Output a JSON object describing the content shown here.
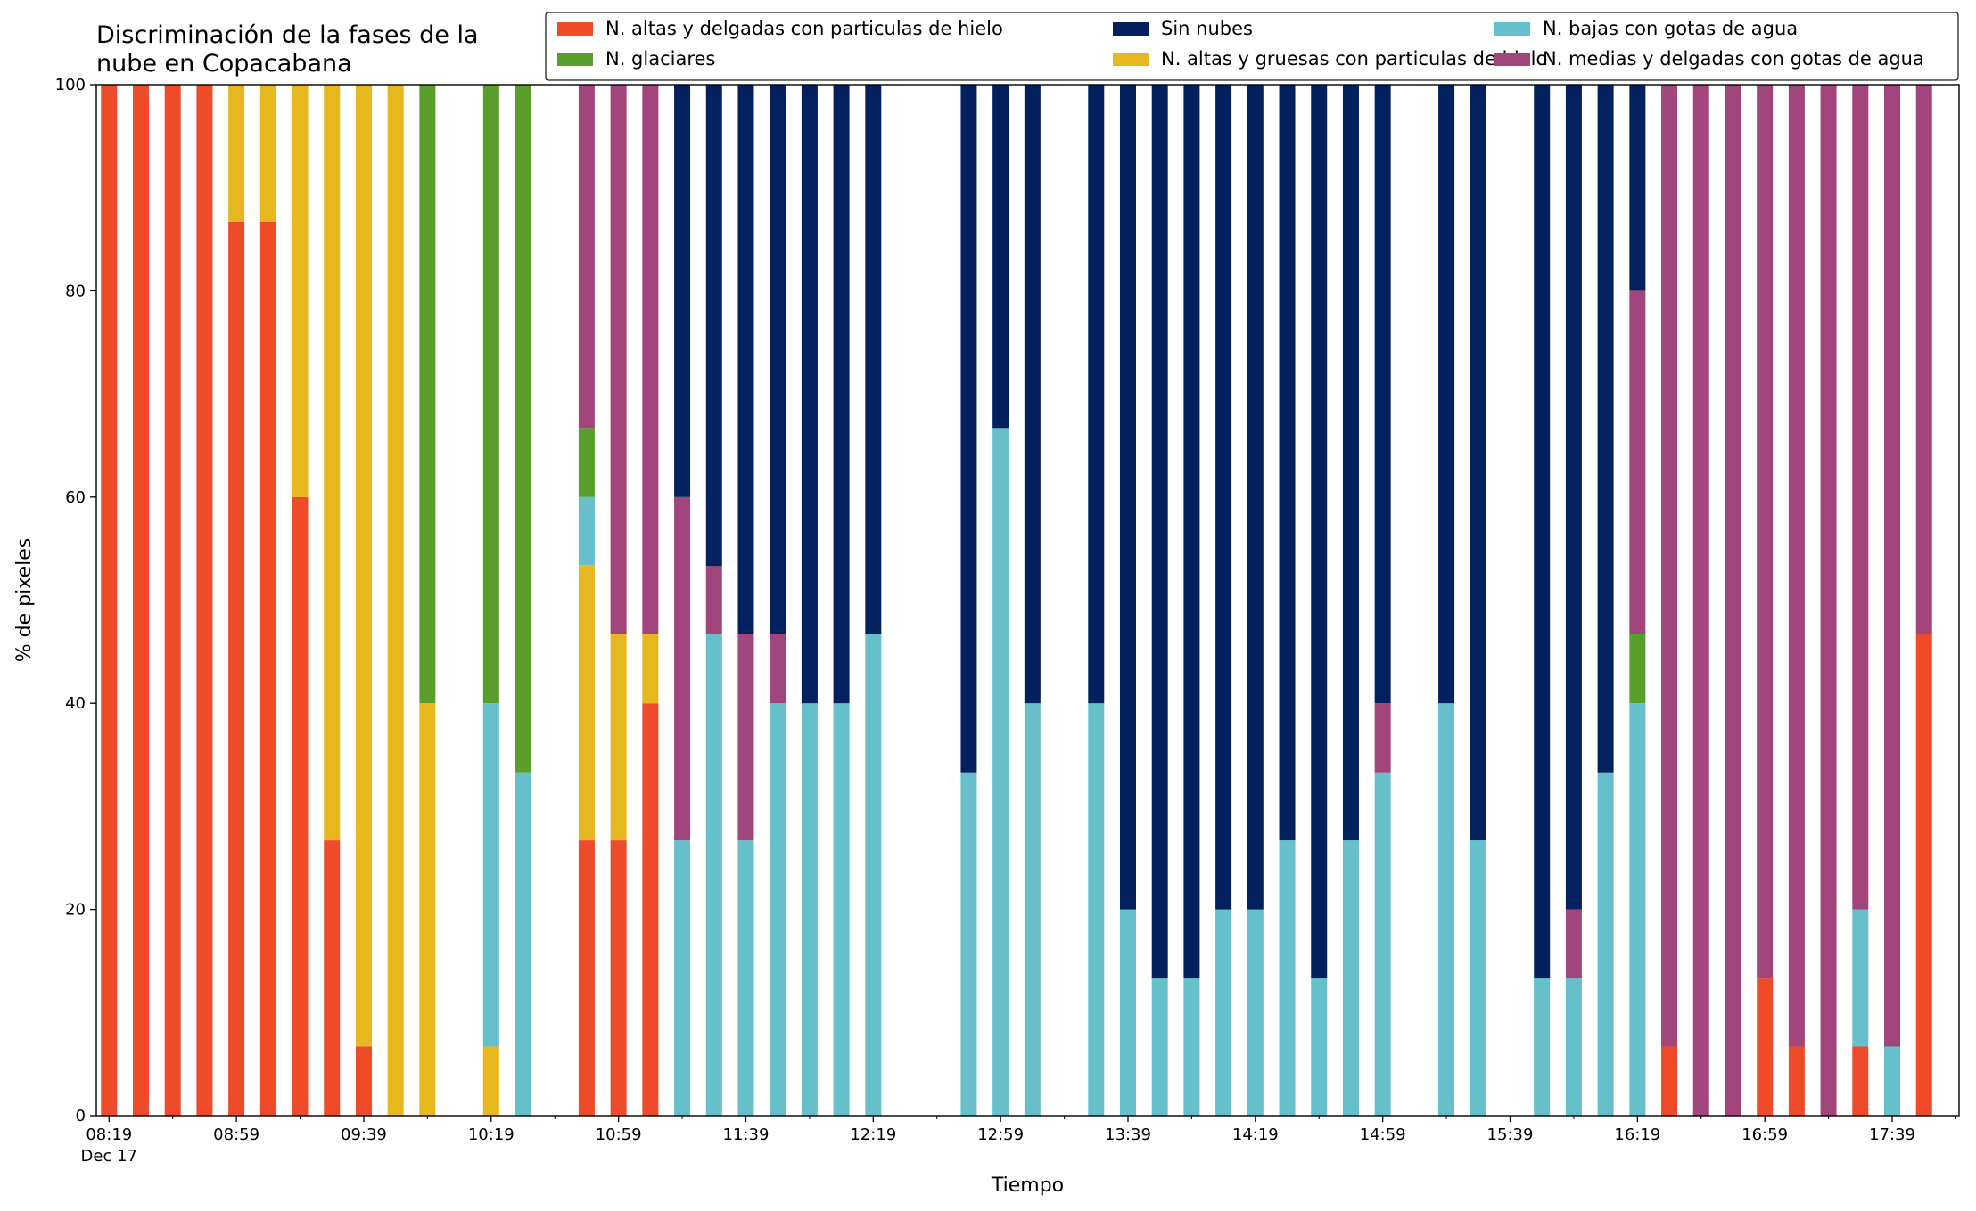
{
  "chart_data": {
    "type": "bar",
    "stacked": true,
    "title": "Discriminación de la fases de la\nnube en Copacabana",
    "xlabel": "Tiempo",
    "ylabel": "% de pixeles",
    "ylim": [
      0,
      100
    ],
    "y_ticks": [
      0,
      20,
      40,
      60,
      80,
      100
    ],
    "x_range": [
      "08:15",
      "18:00"
    ],
    "date_label": "Dec 17",
    "x_tick_labels": [
      "08:19",
      "08:59",
      "09:39",
      "10:19",
      "10:59",
      "11:39",
      "12:19",
      "12:59",
      "13:39",
      "14:19",
      "14:59",
      "15:39",
      "16:19",
      "16:59",
      "17:39"
    ],
    "x_minor_ticks": [
      "08:39",
      "09:19",
      "09:59",
      "10:39",
      "11:19",
      "11:59",
      "12:39",
      "13:19",
      "13:59",
      "14:39",
      "15:19",
      "15:59",
      "16:39",
      "17:19",
      "17:59"
    ],
    "grid": false,
    "legend_position": "top",
    "legend_order": [
      "s1",
      "s4",
      "s6",
      "s2",
      "s3",
      "s5"
    ],
    "series": [
      {
        "key": "s1",
        "name": "N. altas y delgadas con particulas de hielo",
        "color": "#EE4B2B"
      },
      {
        "key": "s2",
        "name": "N. altas y gruesas con particulas de hielo",
        "color": "#E6B71E"
      },
      {
        "key": "s3",
        "name": "N. bajas con gotas de agua",
        "color": "#67BFCC"
      },
      {
        "key": "s4",
        "name": "N. glaciares",
        "color": "#5A9E2E"
      },
      {
        "key": "s5",
        "name": "N. medias y delgadas con gotas de agua",
        "color": "#A2457B"
      },
      {
        "key": "s6",
        "name": "Sin nubes",
        "color": "#03215E"
      }
    ],
    "stack_order": [
      "s1",
      "s2",
      "s3",
      "s4",
      "s5",
      "s6"
    ],
    "categories": [
      "08:19",
      "08:29",
      "08:39",
      "08:49",
      "08:59",
      "09:09",
      "09:19",
      "09:29",
      "09:39",
      "09:49",
      "09:59",
      "10:19",
      "10:29",
      "10:49",
      "10:59",
      "11:09",
      "11:19",
      "11:29",
      "11:39",
      "11:49",
      "11:59",
      "12:09",
      "12:19",
      "12:49",
      "12:59",
      "13:09",
      "13:29",
      "13:39",
      "13:49",
      "13:59",
      "14:09",
      "14:19",
      "14:29",
      "14:39",
      "14:49",
      "14:59",
      "15:19",
      "15:29",
      "15:49",
      "15:59",
      "16:09",
      "16:19",
      "16:29",
      "16:39",
      "16:49",
      "16:59",
      "17:09",
      "17:19",
      "17:29",
      "17:39",
      "17:49"
    ],
    "stacks": [
      [
        100,
        0,
        0,
        0,
        0,
        0
      ],
      [
        100,
        0,
        0,
        0,
        0,
        0
      ],
      [
        100,
        0,
        0,
        0,
        0,
        0
      ],
      [
        100,
        0,
        0,
        0,
        0,
        0
      ],
      [
        86.7,
        13.3,
        0,
        0,
        0,
        0
      ],
      [
        86.7,
        13.3,
        0,
        0,
        0,
        0
      ],
      [
        60,
        40,
        0,
        0,
        0,
        0
      ],
      [
        26.7,
        73.3,
        0,
        0,
        0,
        0
      ],
      [
        6.7,
        93.3,
        0,
        0,
        0,
        0
      ],
      [
        0,
        100,
        0,
        0,
        0,
        0
      ],
      [
        0,
        40,
        0,
        60,
        0,
        0
      ],
      [
        0,
        6.7,
        33.3,
        60,
        0,
        0
      ],
      [
        0,
        0,
        33.3,
        66.7,
        0,
        0
      ],
      [
        26.7,
        26.7,
        6.6,
        6.7,
        33.3,
        0
      ],
      [
        26.7,
        20,
        0,
        0,
        53.3,
        0
      ],
      [
        40,
        6.7,
        0,
        0,
        53.3,
        0
      ],
      [
        0,
        0,
        26.7,
        0,
        33.3,
        40
      ],
      [
        0,
        0,
        46.7,
        0,
        6.6,
        46.7
      ],
      [
        0,
        0,
        26.7,
        0,
        20,
        53.3
      ],
      [
        0,
        0,
        40,
        0,
        6.7,
        53.3
      ],
      [
        0,
        0,
        40,
        0,
        0,
        60
      ],
      [
        0,
        0,
        40,
        0,
        0,
        60
      ],
      [
        0,
        0,
        46.7,
        0,
        0,
        53.3
      ],
      [
        0,
        0,
        33.3,
        0,
        0,
        66.7
      ],
      [
        0,
        0,
        66.7,
        0,
        0,
        33.3
      ],
      [
        0,
        0,
        40,
        0,
        0,
        60
      ],
      [
        0,
        0,
        40,
        0,
        0,
        60
      ],
      [
        0,
        0,
        20,
        0,
        0,
        80
      ],
      [
        0,
        0,
        13.3,
        0,
        0,
        86.7
      ],
      [
        0,
        0,
        13.3,
        0,
        0,
        86.7
      ],
      [
        0,
        0,
        20,
        0,
        0,
        80
      ],
      [
        0,
        0,
        20,
        0,
        0,
        80
      ],
      [
        0,
        0,
        26.7,
        0,
        0,
        73.3
      ],
      [
        0,
        0,
        13.3,
        0,
        0,
        86.7
      ],
      [
        0,
        0,
        26.7,
        0,
        0,
        73.3
      ],
      [
        0,
        0,
        33.3,
        0,
        6.7,
        60
      ],
      [
        0,
        0,
        40,
        0,
        0,
        60
      ],
      [
        0,
        0,
        26.7,
        0,
        0,
        73.3
      ],
      [
        0,
        0,
        13.3,
        0,
        0,
        86.7
      ],
      [
        0,
        0,
        13.3,
        0,
        6.7,
        80
      ],
      [
        0,
        0,
        33.3,
        0,
        0,
        66.7
      ],
      [
        0,
        0,
        40,
        6.7,
        33.3,
        20
      ],
      [
        6.7,
        0,
        0,
        0,
        93.3,
        0
      ],
      [
        0,
        0,
        0,
        0,
        100,
        0
      ],
      [
        0,
        0,
        0,
        0,
        100,
        0
      ],
      [
        13.3,
        0,
        0,
        0,
        86.7,
        0
      ],
      [
        6.7,
        0,
        0,
        0,
        93.3,
        0
      ],
      [
        0,
        0,
        0,
        0,
        100,
        0
      ],
      [
        6.7,
        0,
        13.3,
        0,
        80,
        0
      ],
      [
        0,
        0,
        6.7,
        0,
        93.3,
        0
      ],
      [
        46.7,
        0,
        0,
        0,
        53.3,
        0
      ]
    ]
  }
}
